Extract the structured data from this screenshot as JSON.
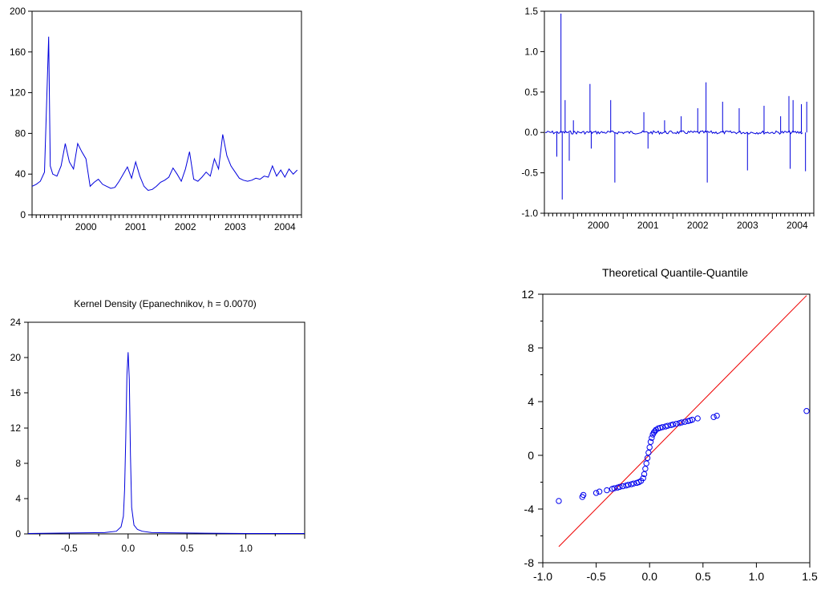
{
  "chart_data": [
    {
      "type": "line",
      "title": "",
      "xlabel": "",
      "ylabel": "",
      "ylim": [
        0,
        200
      ],
      "yticks": [
        "0",
        "40",
        "80",
        "120",
        "160",
        "200"
      ],
      "xticks": [
        "2000",
        "2001",
        "2002",
        "2003",
        "2004"
      ],
      "x_range": [
        "1999-06",
        "2004-11"
      ],
      "color": "#0000dd",
      "series": [
        {
          "x": [
            "1999-06",
            "1999-07",
            "1999-08",
            "1999-09",
            "1999-10",
            "1999-10",
            "1999-11",
            "1999-12",
            "2000-01",
            "2000-02",
            "2000-03",
            "2000-04",
            "2000-05",
            "2000-06",
            "2000-07",
            "2000-08",
            "2000-09",
            "2000-10",
            "2000-11",
            "2000-12",
            "2001-01",
            "2001-02",
            "2001-03",
            "2001-04",
            "2001-05",
            "2001-06",
            "2001-07",
            "2001-08",
            "2001-09",
            "2001-10",
            "2001-11",
            "2001-12",
            "2002-01",
            "2002-02",
            "2002-03",
            "2002-04",
            "2002-05",
            "2002-06",
            "2002-07",
            "2002-08",
            "2002-09",
            "2002-10",
            "2002-11",
            "2002-12",
            "2003-01",
            "2003-02",
            "2003-03",
            "2003-04",
            "2003-05",
            "2003-06",
            "2003-07",
            "2003-08",
            "2003-09",
            "2003-10",
            "2003-11",
            "2003-12",
            "2004-01",
            "2004-02",
            "2004-03",
            "2004-04",
            "2004-05",
            "2004-06",
            "2004-07",
            "2004-08",
            "2004-09",
            "2004-10"
          ],
          "y": [
            28,
            30,
            33,
            42,
            175,
            48,
            40,
            38,
            48,
            70,
            52,
            45,
            70,
            62,
            55,
            28,
            32,
            35,
            30,
            28,
            26,
            27,
            33,
            40,
            47,
            36,
            52,
            38,
            28,
            24,
            25,
            28,
            32,
            34,
            37,
            46,
            40,
            33,
            45,
            62,
            35,
            33,
            37,
            42,
            38,
            55,
            45,
            79,
            58,
            48,
            42,
            36,
            34,
            33,
            34,
            36,
            35,
            38,
            37,
            48,
            38,
            44,
            37,
            45,
            40,
            44
          ]
        }
      ]
    },
    {
      "type": "line",
      "title": "",
      "xlabel": "",
      "ylabel": "",
      "ylim": [
        -1.0,
        1.5
      ],
      "yticks": [
        "-1.0",
        "-0.5",
        "0.0",
        "0.5",
        "1.0",
        "1.5"
      ],
      "xticks": [
        "2000",
        "2001",
        "2002",
        "2003",
        "2004"
      ],
      "x_range": [
        "1999-06",
        "2004-11"
      ],
      "color": "#0000dd",
      "series": [
        {
          "spikes": [
            {
              "x": "1999-09",
              "y": -0.3
            },
            {
              "x": "1999-10",
              "y": 1.47
            },
            {
              "x": "1999-10",
              "y": -0.83
            },
            {
              "x": "1999-11",
              "y": 0.4
            },
            {
              "x": "1999-12",
              "y": -0.35
            },
            {
              "x": "2000-01",
              "y": 0.15
            },
            {
              "x": "2000-05",
              "y": 0.6
            },
            {
              "x": "2000-05",
              "y": -0.2
            },
            {
              "x": "2000-10",
              "y": 0.4
            },
            {
              "x": "2000-11",
              "y": -0.62
            },
            {
              "x": "2001-06",
              "y": 0.25
            },
            {
              "x": "2001-07",
              "y": -0.2
            },
            {
              "x": "2001-11",
              "y": 0.15
            },
            {
              "x": "2002-03",
              "y": 0.2
            },
            {
              "x": "2002-07",
              "y": 0.3
            },
            {
              "x": "2002-09",
              "y": 0.62
            },
            {
              "x": "2002-09",
              "y": -0.62
            },
            {
              "x": "2003-01",
              "y": 0.38
            },
            {
              "x": "2003-05",
              "y": 0.3
            },
            {
              "x": "2003-07",
              "y": -0.47
            },
            {
              "x": "2003-11",
              "y": 0.33
            },
            {
              "x": "2004-03",
              "y": 0.2
            },
            {
              "x": "2004-05",
              "y": 0.45
            },
            {
              "x": "2004-05",
              "y": -0.45
            },
            {
              "x": "2004-06",
              "y": 0.4
            },
            {
              "x": "2004-08",
              "y": 0.35
            },
            {
              "x": "2004-09",
              "y": -0.48
            },
            {
              "x": "2004-09",
              "y": 0.38
            }
          ]
        }
      ]
    },
    {
      "type": "line",
      "title": "Kernel Density (Epanechnikov, h =  0.0070)",
      "xlabel": "",
      "ylabel": "",
      "xlim": [
        -0.85,
        1.5
      ],
      "ylim": [
        0,
        24
      ],
      "xticks": [
        "-0.5",
        "0.0",
        "0.5",
        "1.0"
      ],
      "yticks": [
        "0",
        "4",
        "8",
        "12",
        "16",
        "20",
        "24"
      ],
      "color": "#0000dd",
      "series": [
        {
          "x": [
            -0.85,
            -0.5,
            -0.2,
            -0.1,
            -0.06,
            -0.04,
            -0.03,
            -0.02,
            -0.01,
            0.0,
            0.01,
            0.02,
            0.03,
            0.05,
            0.08,
            0.12,
            0.2,
            0.5,
            1.0,
            1.5
          ],
          "y": [
            0.05,
            0.1,
            0.15,
            0.3,
            0.8,
            2.0,
            5.0,
            11.0,
            18.0,
            20.6,
            17.5,
            9.0,
            3.0,
            1.0,
            0.5,
            0.3,
            0.15,
            0.1,
            0.05,
            0.05
          ]
        }
      ]
    },
    {
      "type": "scatter",
      "title": "Theoretical Quantile-Quantile",
      "xlabel": "",
      "ylabel": "",
      "xlim": [
        -1.0,
        1.5
      ],
      "ylim": [
        -8,
        12
      ],
      "xticks": [
        "-1.0",
        "-0.5",
        "0.0",
        "0.5",
        "1.0",
        "1.5"
      ],
      "yticks": [
        "-8",
        "-4",
        "0",
        "4",
        "8",
        "12"
      ],
      "point_color": "#0000ee",
      "line_color": "#ee0000",
      "reference_line": {
        "x": [
          -0.85,
          1.47
        ],
        "y": [
          -6.8,
          11.9
        ]
      },
      "points": {
        "x": [
          -0.85,
          -0.63,
          -0.62,
          -0.5,
          -0.47,
          -0.4,
          -0.35,
          -0.33,
          -0.3,
          -0.28,
          -0.25,
          -0.22,
          -0.2,
          -0.17,
          -0.15,
          -0.12,
          -0.1,
          -0.08,
          -0.06,
          -0.05,
          -0.04,
          -0.03,
          -0.02,
          -0.01,
          0.0,
          0.01,
          0.02,
          0.03,
          0.04,
          0.05,
          0.06,
          0.08,
          0.1,
          0.12,
          0.15,
          0.17,
          0.2,
          0.22,
          0.25,
          0.28,
          0.3,
          0.33,
          0.36,
          0.38,
          0.4,
          0.45,
          0.6,
          0.63,
          1.47
        ],
        "y": [
          -3.4,
          -3.1,
          -2.95,
          -2.8,
          -2.7,
          -2.6,
          -2.5,
          -2.45,
          -2.4,
          -2.35,
          -2.3,
          -2.25,
          -2.2,
          -2.15,
          -2.1,
          -2.05,
          -2.0,
          -1.9,
          -1.7,
          -1.4,
          -1.0,
          -0.6,
          -0.2,
          0.2,
          0.6,
          1.0,
          1.3,
          1.55,
          1.7,
          1.8,
          1.9,
          2.0,
          2.05,
          2.1,
          2.15,
          2.2,
          2.25,
          2.3,
          2.35,
          2.4,
          2.45,
          2.5,
          2.55,
          2.6,
          2.65,
          2.75,
          2.85,
          2.95,
          3.3
        ]
      }
    }
  ]
}
